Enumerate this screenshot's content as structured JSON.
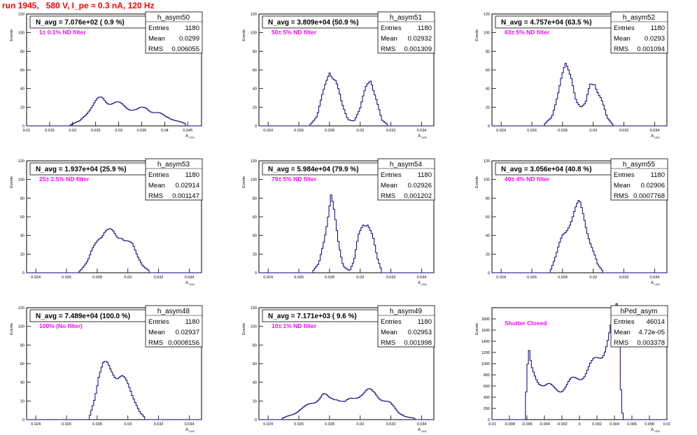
{
  "page": {
    "title": "run 1945,   580 V, I_pe ≈ 0.3 nA, 120 Hz"
  },
  "colors": {
    "hist_line": "#000080",
    "annotation": "#ff00ff",
    "title": "#ff0000"
  },
  "chart_data": [
    {
      "type": "histogram",
      "name": "h_asym50",
      "nav": "N_avg = 7.076e+02 ( 0.9 %)",
      "filter": "1± 0.1% ND filter",
      "stats": {
        "entries": "1180",
        "mean": "0.0299",
        "rms": "0.006055"
      },
      "xlim": [
        0.01,
        0.048
      ],
      "ylim": [
        0,
        120
      ],
      "xticks": [
        0.01,
        0.015,
        0.02,
        0.025,
        0.03,
        0.035,
        0.04,
        0.045
      ],
      "xtick_labels": [
        "0.01",
        "0.015",
        "0.02",
        "0.025",
        "0.03",
        "0.035",
        "0.04",
        "0.045"
      ],
      "yticks": [
        0,
        20,
        40,
        60,
        80,
        100,
        120
      ],
      "xlabel": "A_LED",
      "ylabel": "Events",
      "profile": [
        [
          0.0195,
          1
        ],
        [
          0.0215,
          5
        ],
        [
          0.0235,
          17
        ],
        [
          0.0255,
          27
        ],
        [
          0.0265,
          30
        ],
        [
          0.028,
          26
        ],
        [
          0.03,
          23
        ],
        [
          0.032,
          20
        ],
        [
          0.034,
          17
        ],
        [
          0.036,
          19
        ],
        [
          0.0385,
          14
        ],
        [
          0.04,
          10
        ],
        [
          0.042,
          7
        ],
        [
          0.0445,
          2
        ]
      ]
    },
    {
      "type": "histogram",
      "name": "h_asym51",
      "nav": "N_avg = 3.809e+04 (50.9 %)",
      "filter": "50± 5% ND filter",
      "stats": {
        "entries": "1180",
        "mean": "0.02932",
        "rms": "0.001309"
      },
      "xlim": [
        0.0234,
        0.0348
      ],
      "ylim": [
        0,
        120
      ],
      "xticks": [
        0.024,
        0.026,
        0.028,
        0.03,
        0.032,
        0.034
      ],
      "xtick_labels": [
        "0.024",
        "0.026",
        "0.028",
        "0.03",
        "0.032",
        "0.034"
      ],
      "yticks": [
        0,
        20,
        40,
        60,
        80,
        100,
        120
      ],
      "xlabel": "A_LED",
      "ylabel": "Events",
      "profile": [
        [
          0.0267,
          1
        ],
        [
          0.0272,
          10
        ],
        [
          0.0276,
          35
        ],
        [
          0.028,
          64
        ],
        [
          0.0284,
          50
        ],
        [
          0.0288,
          22
        ],
        [
          0.0292,
          7
        ],
        [
          0.0296,
          6
        ],
        [
          0.03,
          18
        ],
        [
          0.0304,
          40
        ],
        [
          0.0307,
          52
        ],
        [
          0.031,
          35
        ],
        [
          0.0314,
          6
        ],
        [
          0.0318,
          1
        ]
      ]
    },
    {
      "type": "histogram",
      "name": "h_asym52",
      "nav": "N_avg = 4.757e+04 (63.5 %)",
      "filter": "63± 5% ND filter",
      "stats": {
        "entries": "1180",
        "mean": "0.0293",
        "rms": "0.001094"
      },
      "xlim": [
        0.0234,
        0.0348
      ],
      "ylim": [
        0,
        120
      ],
      "xticks": [
        0.024,
        0.026,
        0.028,
        0.03,
        0.032,
        0.034
      ],
      "xtick_labels": [
        "0.024",
        "0.026",
        "0.028",
        "0.03",
        "0.032",
        "0.034"
      ],
      "yticks": [
        0,
        20,
        40,
        60,
        80,
        100,
        120
      ],
      "xlabel": "A_LED",
      "ylabel": "Events",
      "profile": [
        [
          0.0268,
          1
        ],
        [
          0.0273,
          10
        ],
        [
          0.0276,
          30
        ],
        [
          0.0279,
          48
        ],
        [
          0.0282,
          60
        ],
        [
          0.0286,
          52
        ],
        [
          0.0289,
          30
        ],
        [
          0.0292,
          20
        ],
        [
          0.0295,
          22
        ],
        [
          0.0298,
          42
        ],
        [
          0.0301,
          48
        ],
        [
          0.0305,
          32
        ],
        [
          0.0309,
          8
        ],
        [
          0.0313,
          1
        ]
      ]
    },
    {
      "type": "histogram",
      "name": "h_asym53",
      "nav": "N_avg = 1.937e+04 (25.9 %)",
      "filter": "25± 2.5% ND filter",
      "stats": {
        "entries": "1180",
        "mean": "0.02914",
        "rms": "0.001147"
      },
      "xlim": [
        0.0234,
        0.0348
      ],
      "ylim": [
        0,
        120
      ],
      "xticks": [
        0.024,
        0.026,
        0.028,
        0.03,
        0.032,
        0.034
      ],
      "xtick_labels": [
        "0.024",
        "0.026",
        "0.028",
        "0.03",
        "0.032",
        "0.034"
      ],
      "yticks": [
        0,
        20,
        40,
        60,
        80,
        100,
        120
      ],
      "xlabel": "A_LED",
      "ylabel": "Events",
      "profile": [
        [
          0.0268,
          1
        ],
        [
          0.0274,
          12
        ],
        [
          0.0278,
          28
        ],
        [
          0.0281,
          40
        ],
        [
          0.0285,
          46
        ],
        [
          0.0289,
          42
        ],
        [
          0.0293,
          38
        ],
        [
          0.0296,
          42
        ],
        [
          0.0299,
          36
        ],
        [
          0.0303,
          28
        ],
        [
          0.0306,
          18
        ],
        [
          0.031,
          8
        ],
        [
          0.0314,
          2
        ]
      ]
    },
    {
      "type": "histogram",
      "name": "h_asym54",
      "nav": "N_avg = 5.984e+04 (79.9 %)",
      "filter": "79± 5% ND filter",
      "stats": {
        "entries": "1180",
        "mean": "0.02926",
        "rms": "0.001202"
      },
      "xlim": [
        0.0234,
        0.0348
      ],
      "ylim": [
        0,
        120
      ],
      "xticks": [
        0.024,
        0.026,
        0.028,
        0.03,
        0.032,
        0.034
      ],
      "xtick_labels": [
        "0.024",
        "0.026",
        "0.028",
        "0.03",
        "0.032",
        "0.034"
      ],
      "yticks": [
        0,
        20,
        40,
        60,
        80,
        100,
        120
      ],
      "xlabel": "A_LED",
      "ylabel": "Events",
      "profile": [
        [
          0.0269,
          1
        ],
        [
          0.0273,
          10
        ],
        [
          0.0276,
          35
        ],
        [
          0.0279,
          60
        ],
        [
          0.0281,
          78
        ],
        [
          0.0283,
          60
        ],
        [
          0.0286,
          30
        ],
        [
          0.0289,
          8
        ],
        [
          0.0293,
          2
        ],
        [
          0.0296,
          12
        ],
        [
          0.0299,
          38
        ],
        [
          0.0302,
          55
        ],
        [
          0.0305,
          58
        ],
        [
          0.0308,
          40
        ],
        [
          0.0311,
          15
        ],
        [
          0.0314,
          2
        ]
      ]
    },
    {
      "type": "histogram",
      "name": "h_asym55",
      "nav": "N_avg = 3.056e+04 (40.8 %)",
      "filter": "40± 4% ND filter",
      "stats": {
        "entries": "1180",
        "mean": "0.02906",
        "rms": "0.0007768"
      },
      "xlim": [
        0.0234,
        0.0348
      ],
      "ylim": [
        0,
        120
      ],
      "xticks": [
        0.024,
        0.026,
        0.028,
        0.03,
        0.032,
        0.034
      ],
      "xtick_labels": [
        "0.024",
        "0.026",
        "0.028",
        "0.03",
        "0.032",
        "0.034"
      ],
      "yticks": [
        0,
        20,
        40,
        60,
        80,
        100,
        120
      ],
      "xlabel": "A_LED",
      "ylabel": "Events",
      "profile": [
        [
          0.0272,
          2
        ],
        [
          0.0276,
          18
        ],
        [
          0.028,
          40
        ],
        [
          0.0284,
          55
        ],
        [
          0.0288,
          65
        ],
        [
          0.0291,
          70
        ],
        [
          0.0294,
          58
        ],
        [
          0.0297,
          42
        ],
        [
          0.03,
          25
        ],
        [
          0.0303,
          8
        ],
        [
          0.0306,
          2
        ]
      ]
    },
    {
      "type": "histogram",
      "name": "h_asym48",
      "nav": "N_avg = 7.489e+04 (100.0 %)",
      "filter": "100% (No filter)",
      "stats": {
        "entries": "1180",
        "mean": "0.02937",
        "rms": "0.0008156"
      },
      "xlim": [
        0.0234,
        0.0348
      ],
      "ylim": [
        0,
        120
      ],
      "xticks": [
        0.024,
        0.026,
        0.028,
        0.03,
        0.032,
        0.034
      ],
      "xtick_labels": [
        "0.024",
        "0.026",
        "0.028",
        "0.03",
        "0.032",
        "0.034"
      ],
      "yticks": [
        0,
        20,
        40,
        60,
        80,
        100,
        120
      ],
      "xlabel": "A_LED",
      "ylabel": "Events",
      "profile": [
        [
          0.0275,
          3
        ],
        [
          0.0278,
          22
        ],
        [
          0.0281,
          45
        ],
        [
          0.0284,
          55
        ],
        [
          0.0287,
          58
        ],
        [
          0.029,
          55
        ],
        [
          0.0293,
          48
        ],
        [
          0.0296,
          45
        ],
        [
          0.0299,
          38
        ],
        [
          0.0302,
          30
        ],
        [
          0.0305,
          20
        ],
        [
          0.0308,
          8
        ],
        [
          0.0311,
          2
        ]
      ]
    },
    {
      "type": "histogram",
      "name": "h_asym49",
      "nav": "N_avg = 7.171e+03 ( 9.6 %)",
      "filter": "10± 1% ND filter",
      "stats": {
        "entries": "1180",
        "mean": "0.02953",
        "rms": "0.001998"
      },
      "xlim": [
        0.0234,
        0.0348
      ],
      "ylim": [
        0,
        120
      ],
      "xticks": [
        0.024,
        0.026,
        0.028,
        0.03,
        0.032,
        0.034
      ],
      "xtick_labels": [
        "0.024",
        "0.026",
        "0.028",
        "0.03",
        "0.032",
        "0.034"
      ],
      "yticks": [
        0,
        20,
        40,
        60,
        80,
        100,
        120
      ],
      "xlabel": "A_LED",
      "ylabel": "Events",
      "profile": [
        [
          0.0249,
          1
        ],
        [
          0.0256,
          6
        ],
        [
          0.0263,
          12
        ],
        [
          0.027,
          20
        ],
        [
          0.0276,
          26
        ],
        [
          0.028,
          22
        ],
        [
          0.0285,
          24
        ],
        [
          0.029,
          18
        ],
        [
          0.0295,
          22
        ],
        [
          0.03,
          28
        ],
        [
          0.0305,
          30
        ],
        [
          0.031,
          28
        ],
        [
          0.0315,
          22
        ],
        [
          0.032,
          16
        ],
        [
          0.0325,
          8
        ],
        [
          0.033,
          3
        ],
        [
          0.0336,
          1
        ]
      ]
    },
    {
      "type": "histogram",
      "name": "hPed_asym",
      "nav": "",
      "filter": "Shutter Closed",
      "stats": {
        "entries": "46014",
        "mean": "4.72e-05",
        "rms": "0.003378"
      },
      "xlim": [
        -0.01,
        0.01
      ],
      "ylim": [
        0,
        2000
      ],
      "xticks": [
        -0.01,
        -0.008,
        -0.006,
        -0.004,
        -0.002,
        0,
        0.002,
        0.004,
        0.006,
        0.008,
        0.01
      ],
      "xtick_labels": [
        "-0.01",
        "-0.008",
        "-0.006",
        "-0.004",
        "-0.002",
        "0",
        "0.002",
        "0.004",
        "0.006",
        "0.008",
        "0.01"
      ],
      "yticks": [
        0,
        200,
        400,
        600,
        800,
        1000,
        1200,
        1400,
        1600,
        1800
      ],
      "xlabel": "A_LED",
      "ylabel": "Events",
      "profile": [
        [
          -0.0062,
          100
        ],
        [
          -0.006,
          700
        ],
        [
          -0.0058,
          1150
        ],
        [
          -0.0055,
          900
        ],
        [
          -0.005,
          800
        ],
        [
          -0.0045,
          700
        ],
        [
          -0.004,
          600
        ],
        [
          -0.0035,
          580
        ],
        [
          -0.003,
          560
        ],
        [
          -0.0025,
          560
        ],
        [
          -0.002,
          560
        ],
        [
          -0.0015,
          600
        ],
        [
          -0.001,
          660
        ],
        [
          -0.0005,
          710
        ],
        [
          0,
          780
        ],
        [
          0.0005,
          840
        ],
        [
          0.001,
          900
        ],
        [
          0.0015,
          960
        ],
        [
          0.002,
          1050
        ],
        [
          0.0025,
          1200
        ],
        [
          0.003,
          1400
        ],
        [
          0.0035,
          1580
        ],
        [
          0.004,
          1780
        ],
        [
          0.0043,
          1900
        ],
        [
          0.0046,
          1300
        ],
        [
          0.0048,
          300
        ],
        [
          0.005,
          0
        ]
      ]
    }
  ]
}
